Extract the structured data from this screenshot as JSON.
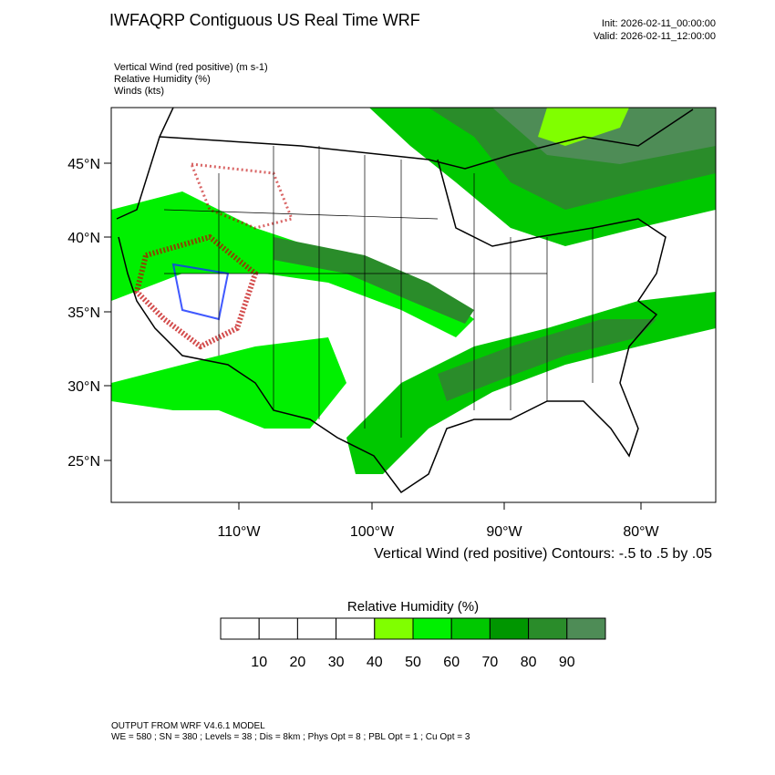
{
  "header": {
    "title": "IWFAQRP Contiguous US Real Time WRF",
    "init": "Init: 2026-02-11_00:00:00",
    "valid": "Valid: 2026-02-11_12:00:00"
  },
  "fields": [
    "Vertical Wind (red positive)   (m s-1)",
    "Relative Humidity   (%)",
    "Winds   (kts)"
  ],
  "map": {
    "lat_labels": [
      "45°N",
      "40°N",
      "35°N",
      "30°N",
      "25°N"
    ],
    "lon_labels": [
      "110°W",
      "100°W",
      "90°W",
      "80°W"
    ],
    "contour_caption": "Vertical Wind (red positive) Contours: -.5 to .5 by .05"
  },
  "colorbar": {
    "title": "Relative Humidity  (%)",
    "labels": [
      10,
      20,
      30,
      40,
      50,
      60,
      70,
      80,
      90
    ],
    "colors": [
      "#ffffff",
      "#ffffff",
      "#ffffff",
      "#ffffff",
      "#80ff00",
      "#00f000",
      "#00c800",
      "#009600",
      "#2a8c2a",
      "#4e8c56"
    ]
  },
  "footer": [
    "OUTPUT FROM WRF V4.6.1 MODEL",
    "WE = 580 ; SN = 380 ; Levels = 38 ; Dis = 8km ; Phys Opt = 8 ; PBL Opt = 1 ; Cu Opt = 3"
  ]
}
